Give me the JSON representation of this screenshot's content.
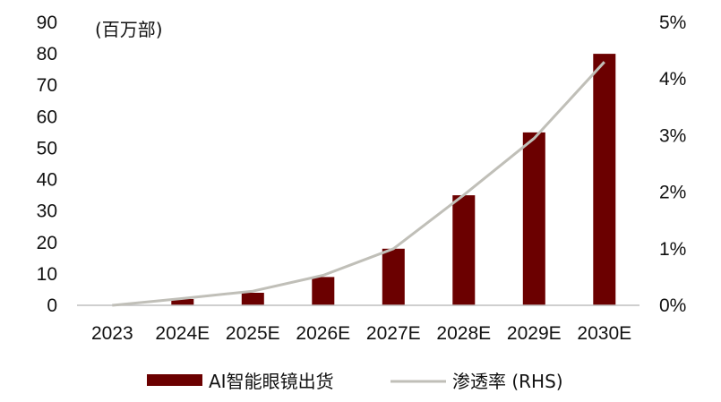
{
  "colors": {
    "bar": "#6b0000",
    "line": "#c0bfb8",
    "axis": "#bfbfbf",
    "text": "#111111"
  },
  "chart_data": {
    "type": "bar",
    "categories": [
      "2023",
      "2024E",
      "2025E",
      "2026E",
      "2027E",
      "2028E",
      "2029E",
      "2030E"
    ],
    "left_axis_unit": "(百万部)",
    "ylim": [
      0,
      90
    ],
    "yticks": [
      0,
      10,
      20,
      30,
      40,
      50,
      60,
      70,
      80,
      90
    ],
    "y2lim": [
      0,
      5
    ],
    "y2ticks": [
      "0%",
      "1%",
      "2%",
      "3%",
      "4%",
      "5%"
    ],
    "series": [
      {
        "name": "AI智能眼镜出货",
        "type": "bar",
        "axis": "left",
        "values": [
          0,
          2,
          4,
          9,
          18,
          35,
          55,
          80
        ]
      },
      {
        "name": "渗透率 (RHS)",
        "type": "line",
        "axis": "right",
        "values": [
          0.0,
          0.12,
          0.25,
          0.53,
          1.0,
          1.95,
          2.95,
          4.3
        ]
      }
    ],
    "legend_position": "bottom",
    "grid": false
  }
}
